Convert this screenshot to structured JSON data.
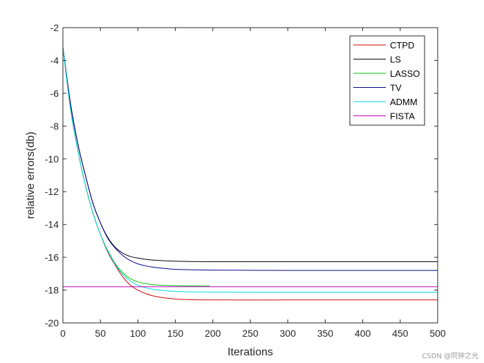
{
  "chart_data": {
    "type": "line",
    "title": "",
    "xlabel": "Iterations",
    "ylabel": "relative errors(db)",
    "xlim": [
      0,
      500
    ],
    "ylim": [
      -20,
      -2
    ],
    "xticks": [
      0,
      50,
      100,
      150,
      200,
      250,
      300,
      350,
      400,
      450,
      500
    ],
    "yticks": [
      -20,
      -18,
      -16,
      -14,
      -12,
      -10,
      -8,
      -6,
      -4,
      -2
    ],
    "grid": false,
    "legend_position": "top-right",
    "series": [
      {
        "name": "CTPD",
        "color": "#cc0000",
        "x": [
          0,
          10,
          20,
          30,
          40,
          50,
          60,
          70,
          80,
          90,
          100,
          110,
          120,
          140,
          160,
          200,
          300,
          400,
          500
        ],
        "y": [
          -3.2,
          -6.9,
          -9.5,
          -11.6,
          -13.3,
          -14.6,
          -15.7,
          -16.5,
          -17.2,
          -17.7,
          -18.0,
          -18.2,
          -18.35,
          -18.5,
          -18.57,
          -18.6,
          -18.6,
          -18.6,
          -18.6
        ]
      },
      {
        "name": "LS",
        "color": "#000000",
        "x": [
          0,
          10,
          20,
          30,
          40,
          50,
          60,
          70,
          80,
          90,
          100,
          110,
          120,
          140,
          160,
          200,
          300,
          400,
          500
        ],
        "y": [
          -3.2,
          -6.6,
          -9.1,
          -11.0,
          -12.7,
          -13.9,
          -14.8,
          -15.4,
          -15.75,
          -15.95,
          -16.05,
          -16.12,
          -16.17,
          -16.22,
          -16.25,
          -16.27,
          -16.27,
          -16.27,
          -16.27
        ]
      },
      {
        "name": "LASSO",
        "color": "#00c000",
        "x": [
          0,
          10,
          20,
          30,
          40,
          50,
          60,
          70,
          80,
          90,
          100,
          110,
          120,
          140,
          160,
          180,
          196
        ],
        "y": [
          -3.2,
          -6.9,
          -9.5,
          -11.6,
          -13.3,
          -14.6,
          -15.6,
          -16.4,
          -16.95,
          -17.3,
          -17.5,
          -17.6,
          -17.67,
          -17.72,
          -17.74,
          -17.75,
          -17.75
        ]
      },
      {
        "name": "TV",
        "color": "#00008b",
        "x": [
          0,
          10,
          20,
          30,
          40,
          50,
          60,
          70,
          80,
          90,
          100,
          110,
          120,
          140,
          160,
          200,
          300,
          400,
          500
        ],
        "y": [
          -3.2,
          -6.6,
          -9.1,
          -11.0,
          -12.7,
          -13.9,
          -14.85,
          -15.45,
          -15.9,
          -16.2,
          -16.4,
          -16.52,
          -16.6,
          -16.7,
          -16.75,
          -16.78,
          -16.8,
          -16.8,
          -16.8
        ]
      },
      {
        "name": "ADMM",
        "color": "#00d8e0",
        "x": [
          0,
          10,
          20,
          30,
          40,
          50,
          60,
          70,
          80,
          90,
          100,
          110,
          120,
          140,
          160,
          200,
          300,
          400,
          500
        ],
        "y": [
          -3.2,
          -6.9,
          -9.5,
          -11.6,
          -13.3,
          -14.6,
          -15.65,
          -16.45,
          -17.05,
          -17.45,
          -17.7,
          -17.85,
          -17.95,
          -18.05,
          -18.1,
          -18.12,
          -18.13,
          -18.13,
          -18.13
        ]
      },
      {
        "name": "FISTA",
        "color": "#c000c0",
        "x": [
          0,
          500
        ],
        "y": [
          -17.8,
          -17.8
        ]
      }
    ]
  },
  "watermark": "CSDN @同钟之光"
}
